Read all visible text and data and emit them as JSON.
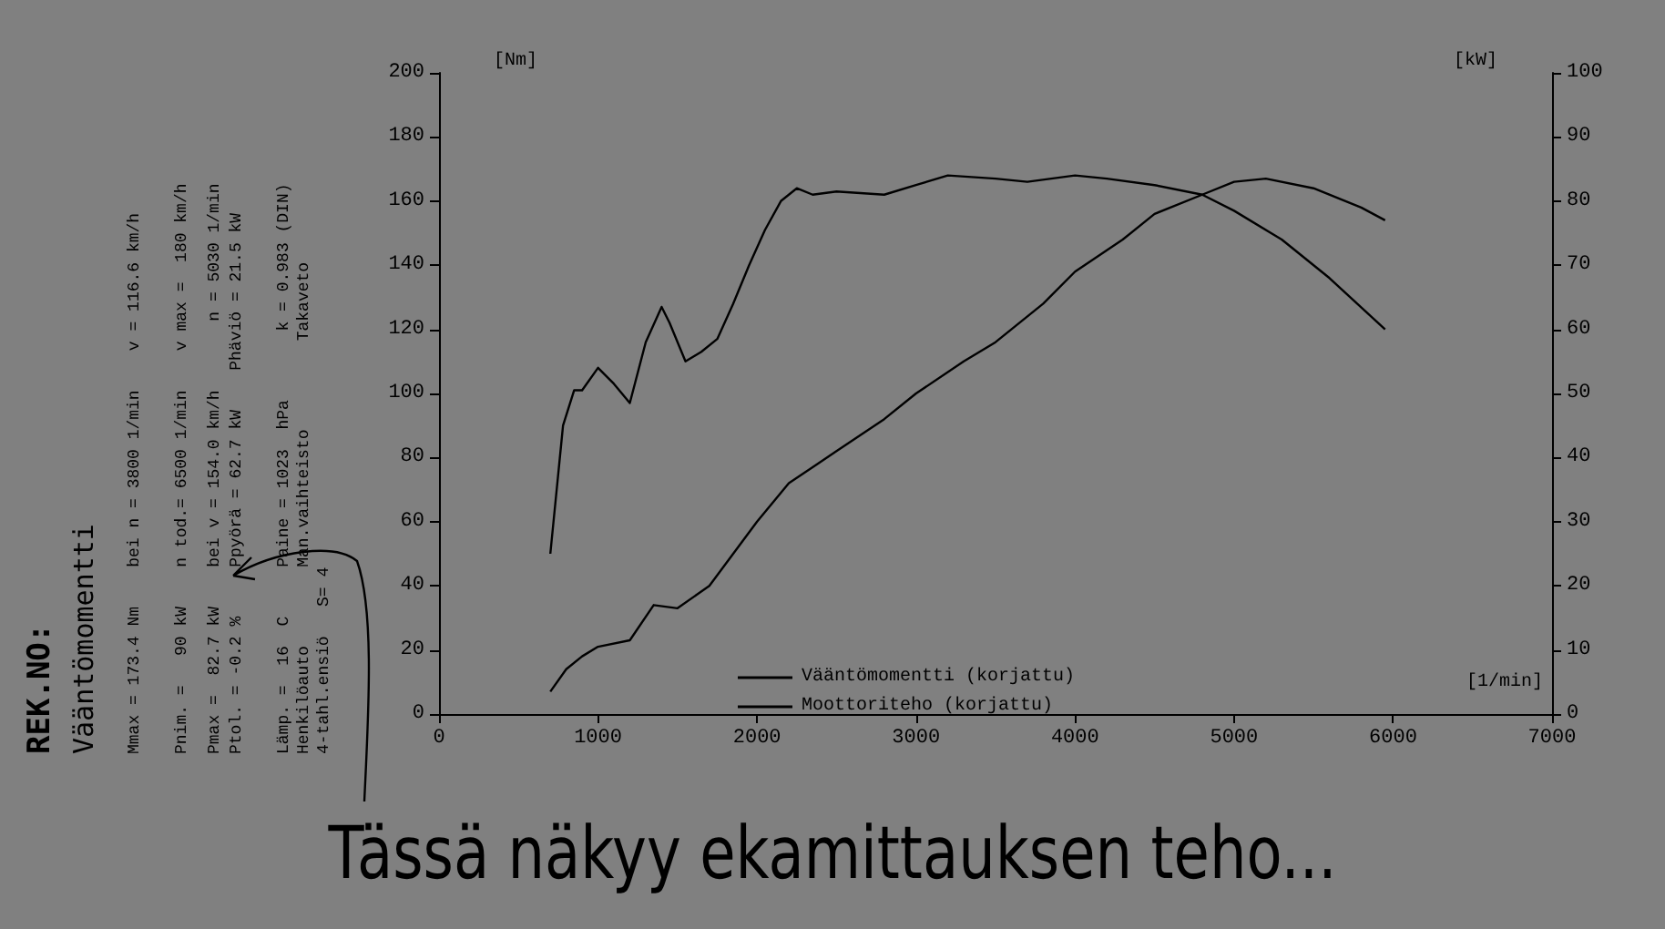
{
  "chart_data": {
    "type": "line",
    "xlabel": "[1/min]",
    "ylabel": "[Nm]",
    "y2label": "[kW]",
    "xlim": [
      0,
      7000
    ],
    "xticks": [
      0,
      1000,
      2000,
      3000,
      4000,
      5000,
      6000,
      7000
    ],
    "ylim": [
      0,
      200
    ],
    "yticks": [
      0,
      20,
      40,
      60,
      80,
      100,
      120,
      140,
      160,
      180,
      200
    ],
    "y2lim": [
      0,
      100
    ],
    "y2ticks": [
      0,
      10,
      20,
      30,
      40,
      50,
      60,
      70,
      80,
      90,
      100
    ],
    "grid": false,
    "legend": "bottom left",
    "series": [
      {
        "name": "Vääntömomentti (korjattu)",
        "color": "#000000",
        "x": [
          700,
          780,
          850,
          900,
          1000,
          1100,
          1200,
          1300,
          1400,
          1450,
          1550,
          1650,
          1750,
          1850,
          1950,
          2050,
          2150,
          2250,
          2350,
          2500,
          2800,
          3000,
          3200,
          3500,
          3700,
          4000,
          4200,
          4500,
          4800,
          5000,
          5300,
          5600,
          5950
        ],
        "values": [
          50,
          90,
          101,
          101,
          108,
          103,
          97,
          116,
          127,
          122,
          110,
          113,
          117,
          128,
          140,
          151,
          160,
          164,
          162,
          163,
          162,
          165,
          168,
          167,
          166,
          168,
          167,
          165,
          162,
          157,
          148,
          136,
          120
        ]
      },
      {
        "name": "Moottoriteho (korjattu)",
        "color": "#000000",
        "axis": "y2",
        "x": [
          700,
          800,
          900,
          1000,
          1200,
          1350,
          1500,
          1700,
          2000,
          2200,
          2500,
          2800,
          3000,
          3300,
          3500,
          3800,
          4000,
          4300,
          4500,
          4800,
          5000,
          5200,
          5500,
          5800,
          5950
        ],
        "values": [
          3.5,
          7,
          9,
          10.5,
          11.5,
          17,
          16.5,
          20,
          30,
          36,
          41,
          46,
          50,
          55,
          58,
          64,
          69,
          74,
          78,
          81,
          83,
          83.5,
          82,
          79,
          77
        ]
      }
    ],
    "annotations": [
      "REK.NO:",
      "Vääntömomentti",
      "Mmax = 173.4 Nm    bei n = 3800 1/min    v = 116.6 km/h",
      "Pnim. =   90 kW    n tod.= 6500 1/min    v max =  180 km/h",
      "Pmax =  82.7 kW    bei v = 154.0 km/h       n = 5030 1/min",
      "Ptol. = -0.2 %     Ppyörä = 62.7 kW    Phäviö = 21.5 kW",
      "Lämp. =  16  C     Paine = 1023  hPa       k = 0.983 (DIN)",
      "Henkilöauto        Man.vaihteisto         Takaveto",
      "4-tahl.ensiö   S= 4",
      "Tässä näkyy ekamittauksen teho..."
    ]
  }
}
